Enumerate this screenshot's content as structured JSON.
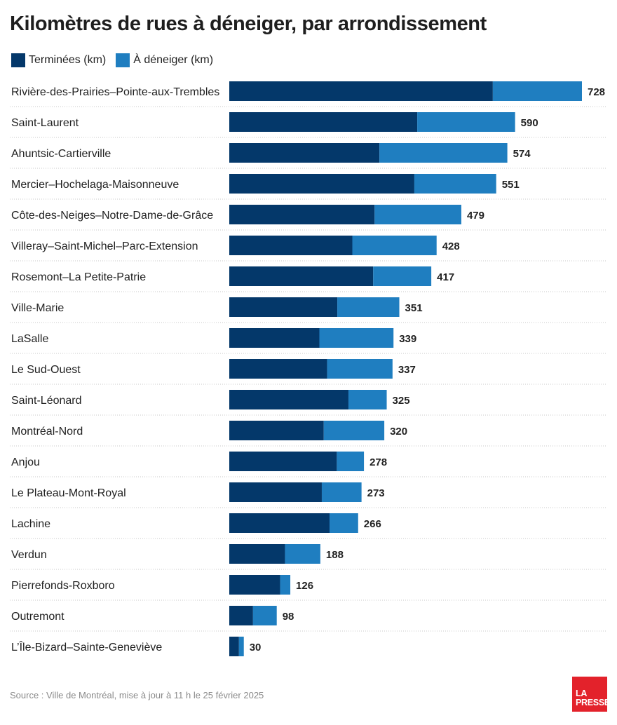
{
  "chart_data": {
    "type": "bar",
    "orientation": "horizontal",
    "stacked": true,
    "title": "Kilomètres de rues à déneiger, par arrondissement",
    "categories": [
      "Rivière-des-Prairies–Pointe-aux-Trembles",
      "Saint-Laurent",
      "Ahuntsic-Cartierville",
      "Mercier–Hochelaga-Maisonneuve",
      "Côte-des-Neiges–Notre-Dame-de-Grâce",
      "Villeray–Saint-Michel–Parc-Extension",
      "Rosemont–La Petite-Patrie",
      "Ville-Marie",
      "LaSalle",
      "Le Sud-Ouest",
      "Saint-Léonard",
      "Montréal-Nord",
      "Anjou",
      "Le Plateau-Mont-Royal",
      "Lachine",
      "Verdun",
      "Pierrefonds-Roxboro",
      "Outremont",
      "L’Île-Bizard–Sainte-Geneviève"
    ],
    "series": [
      {
        "name": "Terminées (km)",
        "color": "#04386a",
        "values": [
          544,
          388,
          310,
          382,
          300,
          254,
          297,
          223,
          186,
          202,
          246,
          195,
          222,
          191,
          207,
          115,
          105,
          49,
          20
        ]
      },
      {
        "name": "À déneiger (km)",
        "color": "#1f7ec0",
        "values": [
          184,
          202,
          264,
          169,
          179,
          174,
          120,
          128,
          153,
          135,
          79,
          125,
          56,
          82,
          59,
          73,
          21,
          49,
          10
        ]
      }
    ],
    "totals": [
      728,
      590,
      574,
      551,
      479,
      428,
      417,
      351,
      339,
      337,
      325,
      320,
      278,
      273,
      266,
      188,
      126,
      98,
      30
    ],
    "xlim": [
      0,
      728
    ],
    "grid": false,
    "legend_position": "top-left"
  },
  "source": "Source : Ville de Montréal, mise à jour à 11 h le 25 février 2025",
  "logo": {
    "line1": "LA",
    "line2": "PRESSE",
    "color": "#e3222b"
  }
}
